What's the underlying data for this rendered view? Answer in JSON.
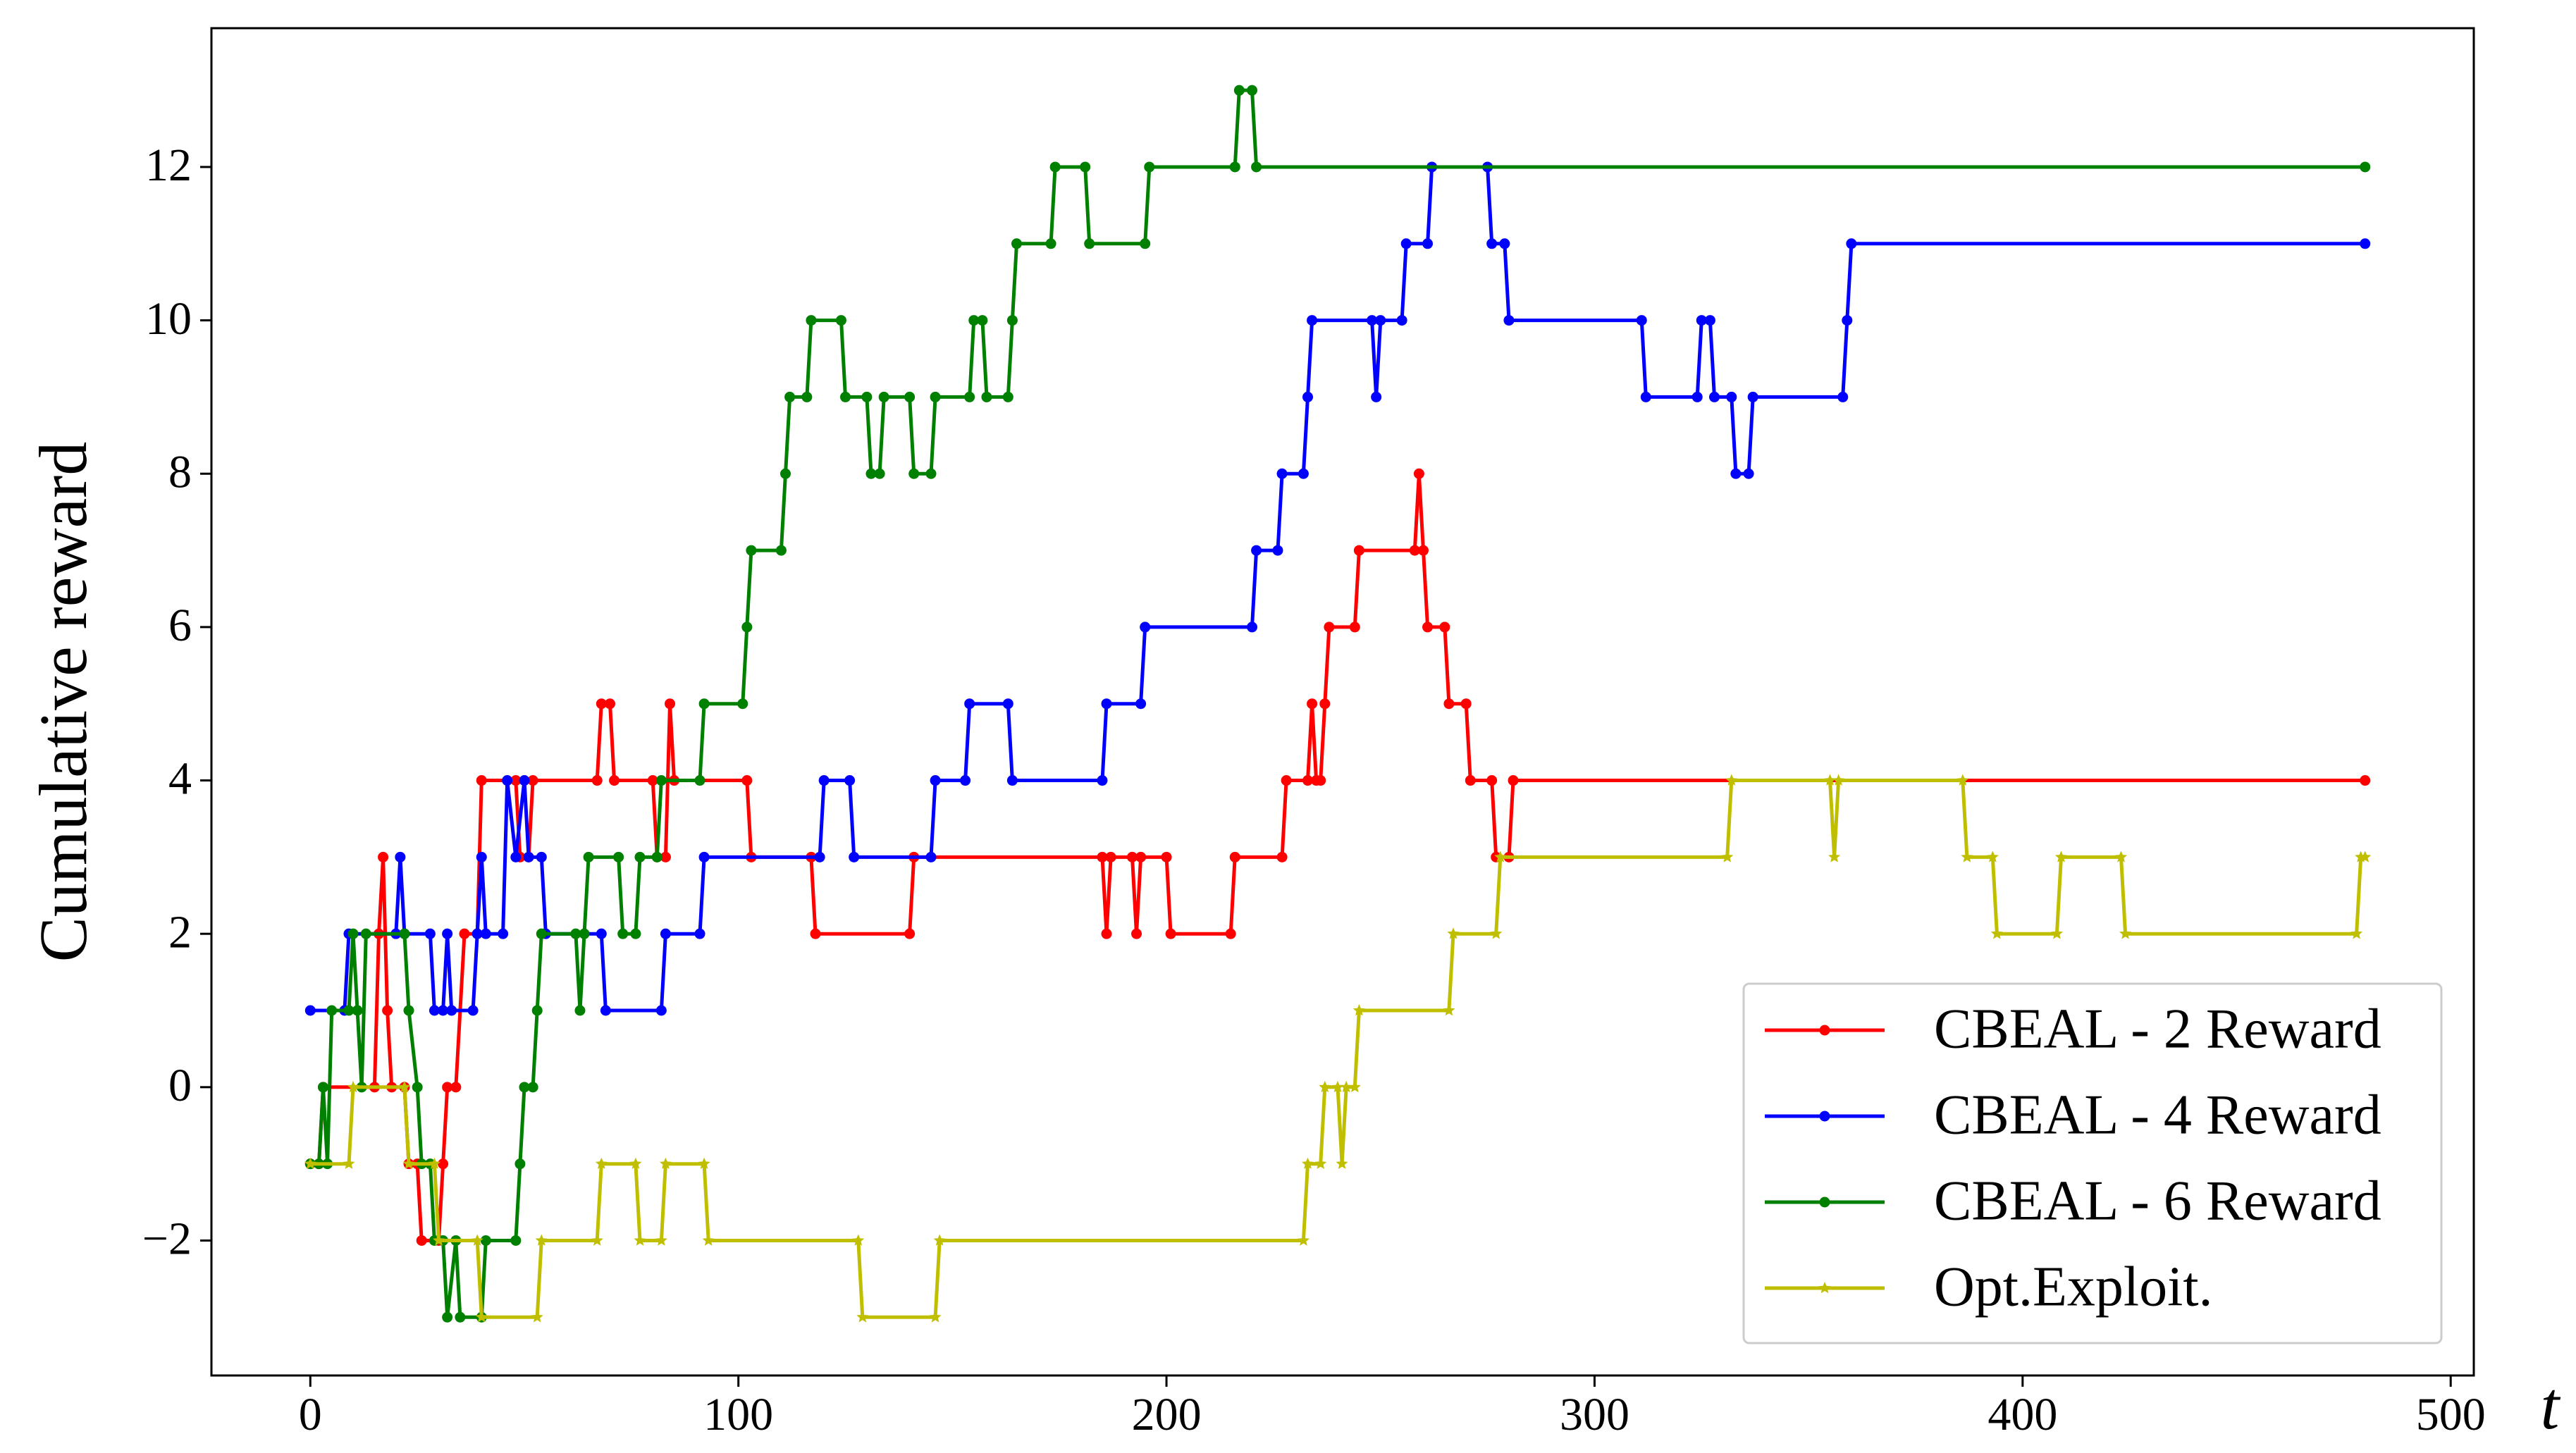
{
  "chart_data": {
    "type": "line",
    "xlabel": "t",
    "ylabel": "Cumulative reward",
    "xlim": [
      -23.1,
      505.4
    ],
    "ylim": [
      -3.76,
      13.81
    ],
    "xticks": [
      0,
      100,
      200,
      300,
      400,
      500
    ],
    "yticks": [
      {
        "value": -2,
        "label": "−2"
      },
      0,
      2,
      4,
      6,
      8,
      10,
      12
    ],
    "grid": false,
    "legend": "lower right",
    "series": [
      {
        "name": "CBEAL - 2 Reward",
        "color": "#ff0000",
        "marker": "circle",
        "x": [
          0,
          2,
          3,
          15,
          16,
          17,
          18,
          19,
          22,
          23,
          25,
          26,
          30,
          31,
          32,
          34,
          36,
          39,
          40,
          48,
          49,
          51,
          52,
          67,
          68,
          70,
          71,
          80,
          81,
          83,
          84,
          85,
          102,
          103,
          117,
          118,
          140,
          141,
          185,
          186,
          187,
          192,
          193,
          194,
          200,
          201,
          215,
          216,
          227,
          228,
          233,
          234,
          235,
          236,
          237,
          238,
          244,
          245,
          258,
          259,
          260,
          261,
          265,
          266,
          270,
          271,
          276,
          277,
          280,
          281,
          480
        ],
        "values": [
          -1,
          -1,
          0,
          0,
          2,
          3,
          1,
          0,
          0,
          -1,
          -1,
          -2,
          -2,
          -1,
          0,
          0,
          2,
          2,
          4,
          4,
          3,
          3,
          4,
          4,
          5,
          5,
          4,
          4,
          3,
          3,
          5,
          4,
          4,
          3,
          3,
          2,
          2,
          3,
          3,
          2,
          3,
          3,
          2,
          3,
          3,
          2,
          2,
          3,
          3,
          4,
          4,
          5,
          4,
          4,
          5,
          6,
          6,
          7,
          7,
          8,
          7,
          6,
          6,
          5,
          5,
          4,
          4,
          3,
          3,
          4,
          4
        ]
      },
      {
        "name": "CBEAL - 4 Reward",
        "color": "#0000ff",
        "marker": "circle",
        "x": [
          0,
          8,
          9,
          20,
          21,
          22,
          28,
          29,
          31,
          32,
          33,
          38,
          39,
          40,
          41,
          45,
          46,
          48,
          50,
          51,
          54,
          55,
          68,
          69,
          82,
          83,
          91,
          92,
          119,
          120,
          126,
          127,
          145,
          146,
          153,
          154,
          163,
          164,
          185,
          186,
          194,
          195,
          220,
          221,
          226,
          227,
          232,
          233,
          234,
          248,
          249,
          250,
          255,
          256,
          261,
          262,
          275,
          276,
          279,
          280,
          311,
          312,
          324,
          325,
          327,
          328,
          332,
          333,
          336,
          337,
          358,
          359,
          360,
          480
        ],
        "values": [
          1,
          1,
          2,
          2,
          3,
          2,
          2,
          1,
          1,
          2,
          1,
          1,
          2,
          3,
          2,
          2,
          4,
          3,
          4,
          3,
          3,
          2,
          2,
          1,
          1,
          2,
          2,
          3,
          3,
          4,
          4,
          3,
          3,
          4,
          4,
          5,
          5,
          4,
          4,
          5,
          5,
          6,
          6,
          7,
          7,
          8,
          8,
          9,
          10,
          10,
          9,
          10,
          10,
          11,
          11,
          12,
          12,
          11,
          11,
          10,
          10,
          9,
          9,
          10,
          10,
          9,
          9,
          8,
          8,
          9,
          9,
          10,
          11,
          11
        ]
      },
      {
        "name": "CBEAL - 6 Reward",
        "color": "#008000",
        "marker": "circle",
        "x": [
          0,
          2,
          3,
          4,
          5,
          9,
          10,
          11,
          12,
          13,
          22,
          23,
          25,
          26,
          28,
          29,
          31,
          32,
          34,
          35,
          40,
          41,
          48,
          49,
          50,
          52,
          53,
          54,
          62,
          63,
          64,
          65,
          72,
          73,
          76,
          77,
          81,
          82,
          91,
          92,
          101,
          102,
          103,
          110,
          111,
          112,
          116,
          117,
          124,
          125,
          130,
          131,
          133,
          134,
          140,
          141,
          145,
          146,
          154,
          155,
          157,
          158,
          163,
          164,
          165,
          173,
          174,
          181,
          182,
          195,
          196,
          216,
          217,
          220,
          221,
          480
        ],
        "values": [
          -1,
          -1,
          0,
          -1,
          1,
          1,
          2,
          1,
          0,
          2,
          2,
          1,
          0,
          -1,
          -1,
          -2,
          -2,
          -3,
          -2,
          -3,
          -3,
          -2,
          -2,
          -1,
          0,
          0,
          1,
          2,
          2,
          1,
          2,
          3,
          3,
          2,
          2,
          3,
          3,
          4,
          4,
          5,
          5,
          6,
          7,
          7,
          8,
          9,
          9,
          10,
          10,
          9,
          9,
          8,
          8,
          9,
          9,
          8,
          8,
          9,
          9,
          10,
          10,
          9,
          9,
          10,
          11,
          11,
          12,
          12,
          11,
          11,
          12,
          12,
          13,
          13,
          12,
          12
        ]
      },
      {
        "name": "Opt.Exploit.",
        "color": "#bfbf00",
        "marker": "star",
        "x": [
          0,
          9,
          10,
          22,
          23,
          29,
          30,
          39,
          40,
          53,
          54,
          67,
          68,
          76,
          77,
          82,
          83,
          92,
          93,
          128,
          129,
          146,
          147,
          232,
          233,
          236,
          237,
          240,
          241,
          242,
          244,
          245,
          266,
          267,
          277,
          278,
          331,
          332,
          355,
          356,
          357,
          386,
          387,
          393,
          394,
          408,
          409,
          423,
          424,
          478,
          479,
          480
        ],
        "values": [
          -1,
          -1,
          0,
          0,
          -1,
          -1,
          -2,
          -2,
          -3,
          -3,
          -2,
          -2,
          -1,
          -1,
          -2,
          -2,
          -1,
          -1,
          -2,
          -2,
          -3,
          -3,
          -2,
          -2,
          -1,
          -1,
          0,
          0,
          -1,
          0,
          0,
          1,
          1,
          2,
          2,
          3,
          3,
          4,
          4,
          3,
          4,
          4,
          3,
          3,
          2,
          2,
          3,
          3,
          2,
          2,
          3,
          3
        ]
      }
    ]
  }
}
